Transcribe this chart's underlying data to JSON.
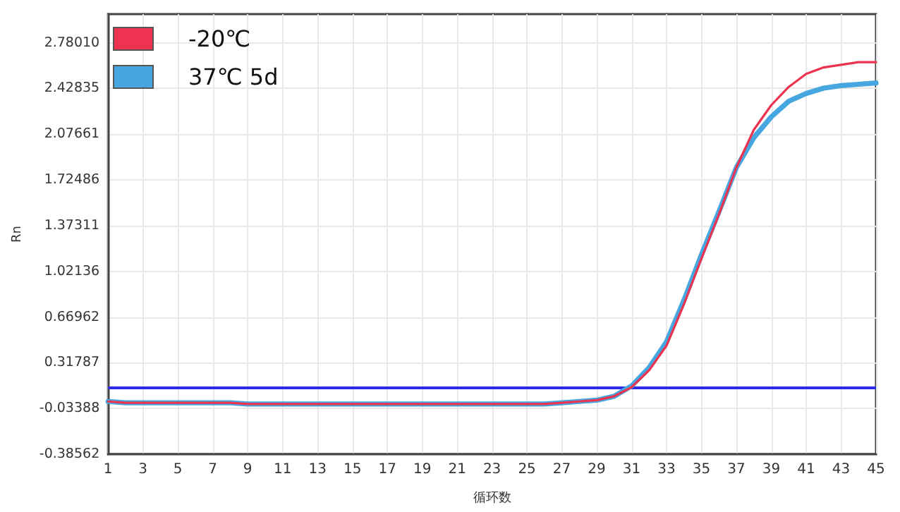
{
  "chart_data": {
    "type": "line",
    "xlabel": "循环数",
    "ylabel": "Rn",
    "x": [
      1,
      2,
      3,
      4,
      5,
      6,
      7,
      8,
      9,
      10,
      11,
      12,
      13,
      14,
      15,
      16,
      17,
      18,
      19,
      20,
      21,
      22,
      23,
      24,
      25,
      26,
      27,
      28,
      29,
      30,
      31,
      32,
      33,
      34,
      35,
      36,
      37,
      38,
      39,
      40,
      41,
      42,
      43,
      44,
      45
    ],
    "series": [
      {
        "name": "-20℃",
        "color": "#ee3350",
        "values": [
          0.02,
          0.01,
          0.01,
          0.01,
          0.01,
          0.01,
          0.01,
          0.01,
          0,
          0,
          0,
          0,
          0,
          0,
          0,
          0,
          0,
          0,
          0,
          0,
          0,
          0,
          0,
          0,
          0,
          0,
          0.01,
          0.02,
          0.03,
          0.06,
          0.13,
          0.26,
          0.45,
          0.77,
          1.12,
          1.46,
          1.82,
          2.11,
          2.3,
          2.44,
          2.54,
          2.59,
          2.61,
          2.63,
          2.63
        ]
      },
      {
        "name": "37℃ 5d",
        "color": "#45a6e0",
        "values": [
          0.02,
          0.01,
          0.01,
          0.01,
          0.01,
          0.01,
          0.01,
          0.01,
          0,
          0,
          0,
          0,
          0,
          0,
          0,
          0,
          0,
          0,
          0,
          0,
          0,
          0,
          0,
          0,
          0,
          0,
          0.01,
          0.02,
          0.03,
          0.06,
          0.14,
          0.28,
          0.48,
          0.8,
          1.15,
          1.48,
          1.82,
          2.05,
          2.21,
          2.33,
          2.39,
          2.43,
          2.45,
          2.46,
          2.47
        ]
      }
    ],
    "xlim": [
      1,
      45
    ],
    "xticks": [
      1,
      3,
      5,
      7,
      9,
      11,
      13,
      15,
      17,
      19,
      21,
      23,
      25,
      27,
      29,
      31,
      33,
      35,
      37,
      39,
      41,
      43,
      45
    ],
    "ylim": [
      -0.38562,
      3.0
    ],
    "yticks": [
      -0.38562,
      -0.03388,
      0.31787,
      0.66962,
      1.02136,
      1.37311,
      1.72486,
      2.07661,
      2.42835,
      {
        "value": 2.7801,
        "label": "2.78010"
      }
    ],
    "ref_lines": [
      {
        "axis": "y",
        "value": 0.13,
        "color": "#2b2be8"
      }
    ],
    "grid": true,
    "legend": "top left",
    "marker": "none",
    "line_style": "solid"
  }
}
